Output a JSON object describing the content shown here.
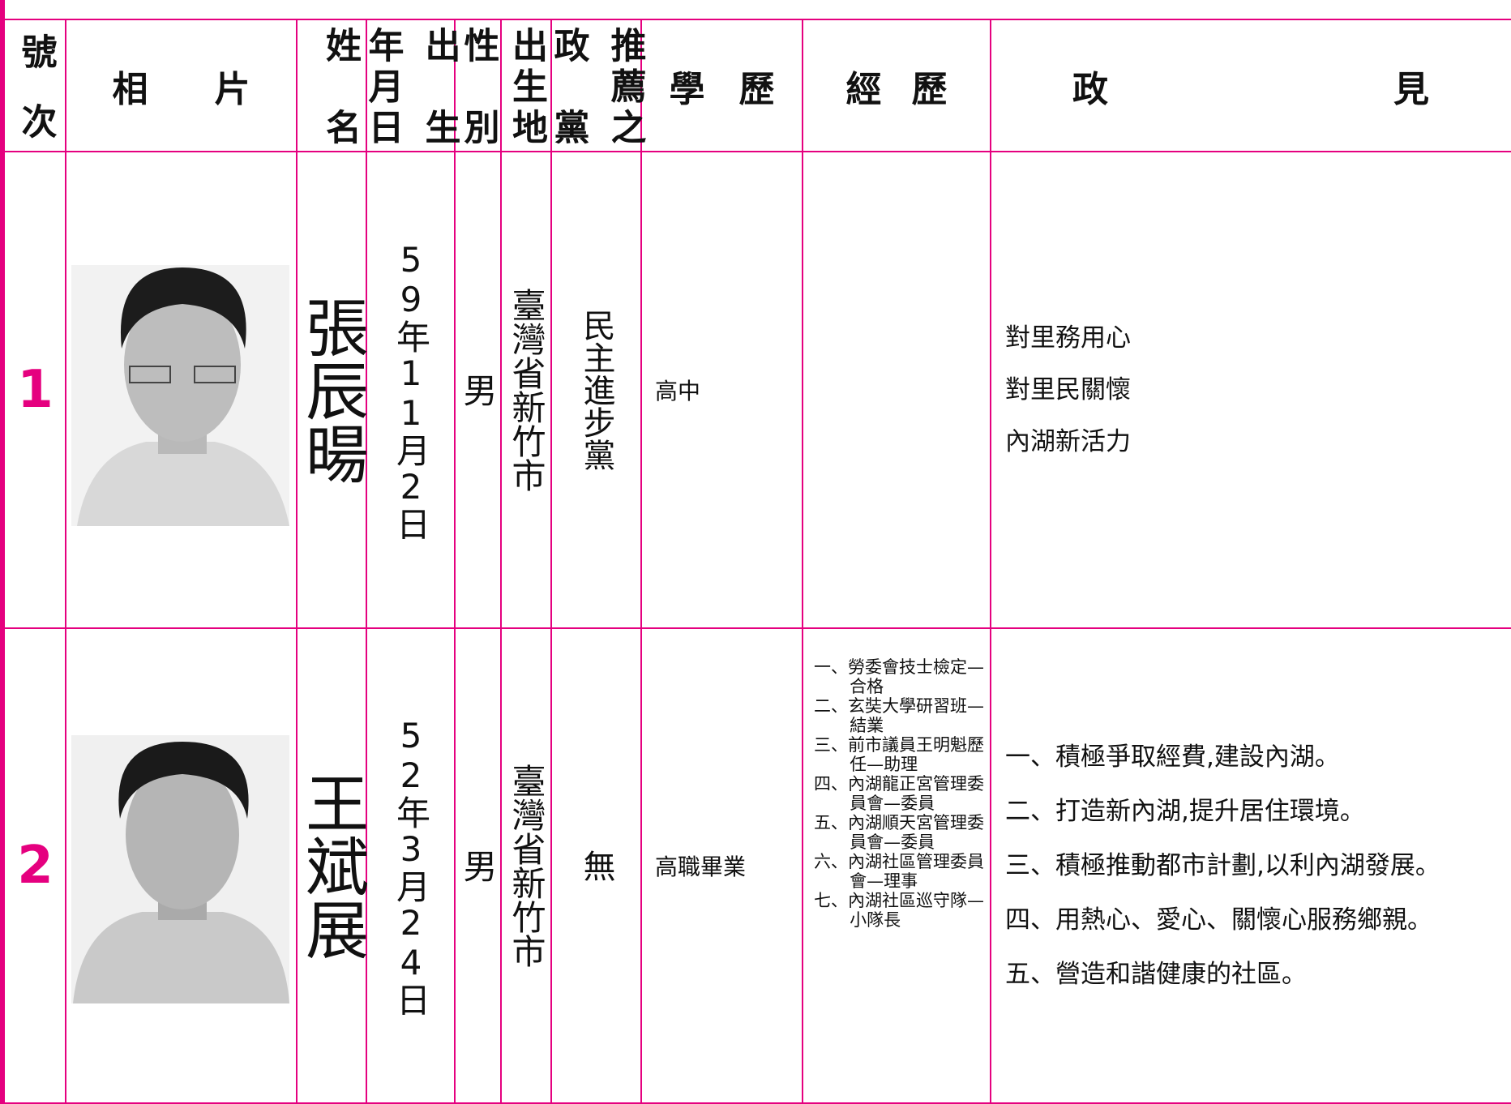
{
  "header": {
    "number": "號次",
    "photo": "相片",
    "name": "姓名",
    "birth_date": [
      "出生",
      "年月日"
    ],
    "sex": "性別",
    "birthplace": "出生地",
    "party": [
      "推薦之",
      "政黨"
    ],
    "education": "學歷",
    "experience": "經歷",
    "platform": "政見"
  },
  "candidates": [
    {
      "number": "1",
      "name": "張辰暘",
      "birth_date": "59年11月2日",
      "sex": "男",
      "birthplace": "臺灣省新竹市",
      "party": "民主進步黨",
      "education": "高中",
      "experience": [],
      "platform": [
        "對里務用心",
        "對里民關懷",
        "內湖新活力"
      ]
    },
    {
      "number": "2",
      "name": "王斌展",
      "birth_date": "52年3月24日",
      "sex": "男",
      "birthplace": "臺灣省新竹市",
      "party": "無",
      "education": "高職畢業",
      "experience": [
        "一、勞委會技士檢定—合格",
        "二、玄奘大學研習班—結業",
        "三、前市議員王明魁歷任—助理",
        "四、內湖龍正宮管理委員會—委員",
        "五、內湖順天宮管理委員會—委員",
        "六、內湖社區管理委員會—理事",
        "七、內湖社區巡守隊—小隊長"
      ],
      "platform": [
        "一、積極爭取經費,建設內湖。",
        "二、打造新內湖,提升居住環境。",
        "三、積極推動都市計劃,以利內湖發展。",
        "四、用熱心、愛心、關懷心服務鄉親。",
        "五、營造和諧健康的社區。"
      ]
    }
  ]
}
